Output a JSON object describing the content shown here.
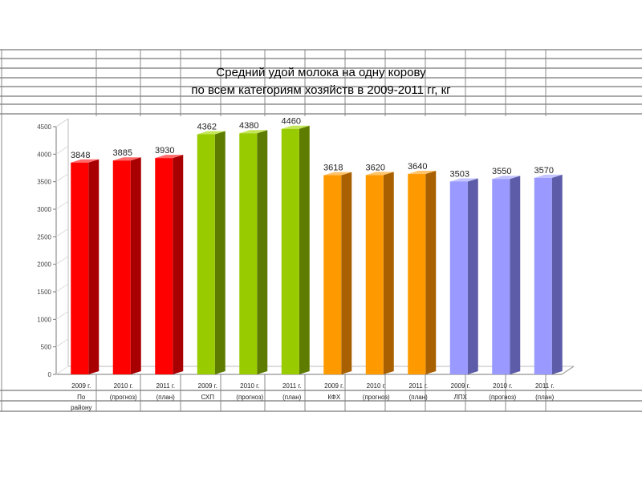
{
  "chart_data": {
    "type": "bar",
    "title_line1": "Средний удой молока на одну корову",
    "title_line2": "по всем категориям хозяйств в 2009-2011 гг,  кг",
    "ylim": [
      0,
      4500
    ],
    "yticks": [
      "0",
      "500",
      "1000",
      "1500",
      "2000",
      "2500",
      "3000",
      "3500",
      "4000",
      "4500"
    ],
    "grid": false,
    "categories": [
      {
        "line1": "2009 г.",
        "line2": "По",
        "line3": "району"
      },
      {
        "line1": "2010 г.",
        "line2": "(прогноз)",
        "line3": ""
      },
      {
        "line1": "2011 г.",
        "line2": "(план)",
        "line3": ""
      },
      {
        "line1": "2009 г.",
        "line2": "СХП",
        "line3": ""
      },
      {
        "line1": "2010 г.",
        "line2": "(прогноз)",
        "line3": ""
      },
      {
        "line1": "2011 г.",
        "line2": "(план)",
        "line3": ""
      },
      {
        "line1": "2009 г.",
        "line2": "КФХ",
        "line3": ""
      },
      {
        "line1": "2010 г.",
        "line2": "(прогноз)",
        "line3": ""
      },
      {
        "line1": "2011 г.",
        "line2": "(план)",
        "line3": ""
      },
      {
        "line1": "2009 г.",
        "line2": "ЛПХ",
        "line3": ""
      },
      {
        "line1": "2010 г.",
        "line2": "(прогноз)",
        "line3": ""
      },
      {
        "line1": "2011 г.",
        "line2": "(план)",
        "line3": ""
      }
    ],
    "values": [
      3848,
      3885,
      3930,
      4362,
      4380,
      4460,
      3618,
      3620,
      3640,
      3503,
      3550,
      3570
    ],
    "data_labels": [
      "3848",
      "3885",
      "3930",
      "4362",
      "4380",
      "4460",
      "3618",
      "3620",
      "3640",
      "3503",
      "3550",
      "3570"
    ],
    "group_colors": [
      {
        "front": "#ff0000",
        "side": "#a80000",
        "top": "#ff6a6a"
      },
      {
        "front": "#99cc00",
        "side": "#5e7d00",
        "top": "#c4e65a"
      },
      {
        "front": "#ff9900",
        "side": "#a86000",
        "top": "#ffc36a"
      },
      {
        "front": "#9999ff",
        "side": "#5c5ca8",
        "top": "#c4c4ff"
      }
    ],
    "bar_group_index": [
      0,
      0,
      0,
      1,
      1,
      1,
      2,
      2,
      2,
      3,
      3,
      3
    ]
  }
}
